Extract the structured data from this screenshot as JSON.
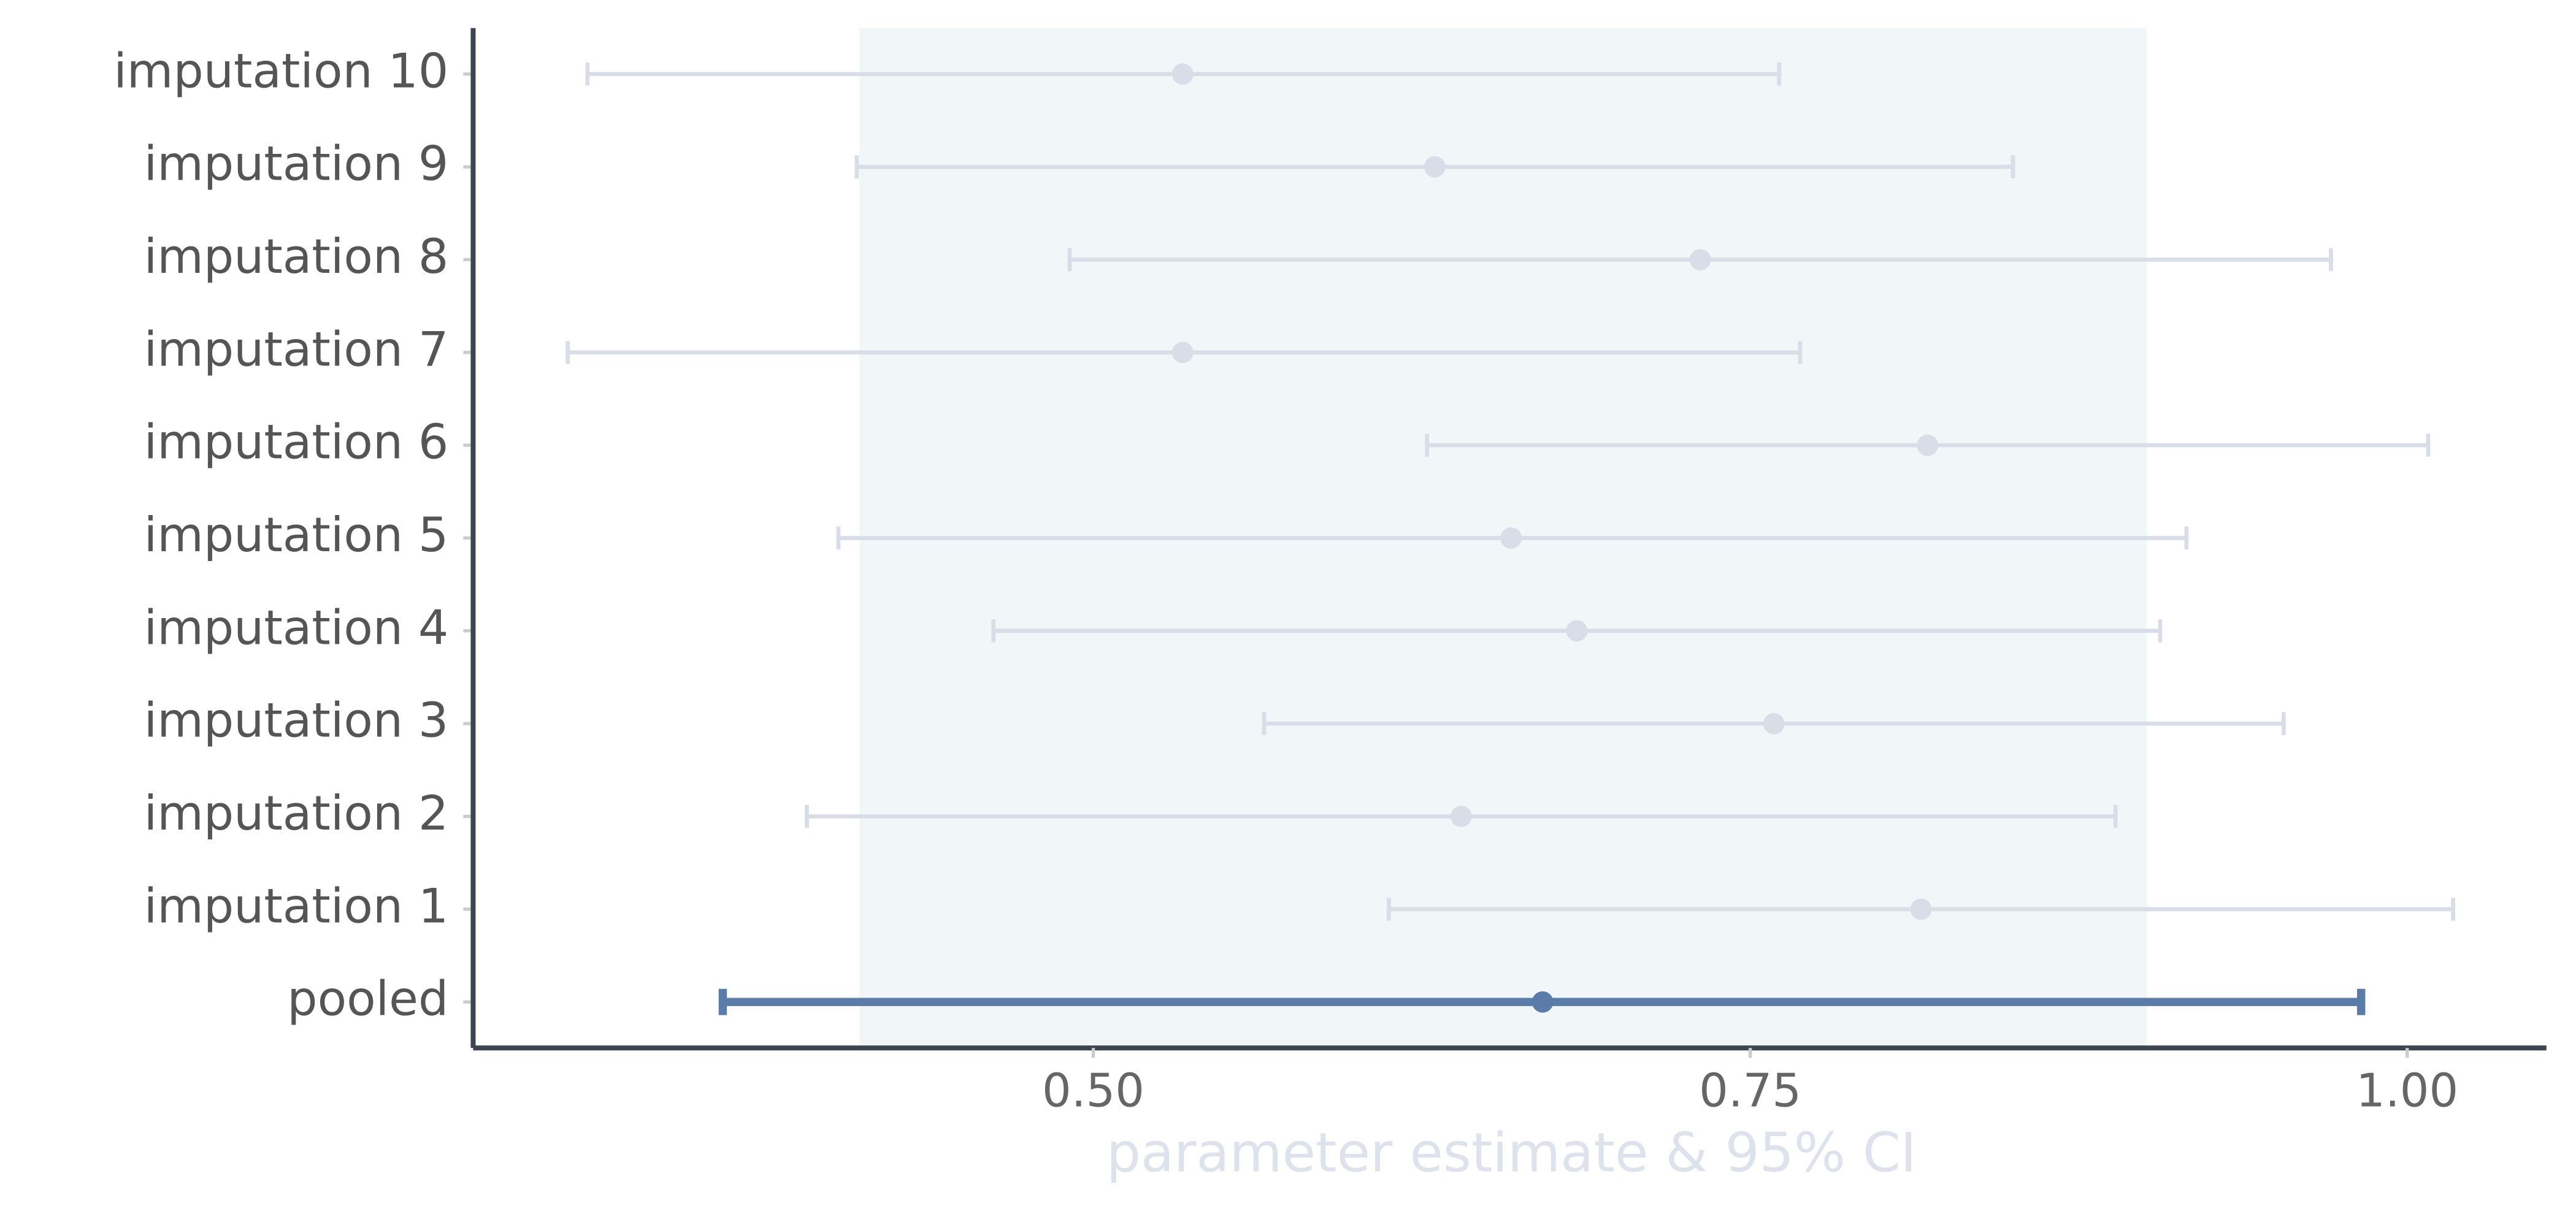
{
  "chart_data": {
    "type": "forest",
    "x_label": "parameter estimate & 95% CI",
    "categories": [
      "imputation 10",
      "imputation 9",
      "imputation 8",
      "imputation 7",
      "imputation 6",
      "imputation 5",
      "imputation 4",
      "imputation 3",
      "imputation 2",
      "imputation 1",
      "pooled"
    ],
    "values": [
      0.534,
      0.63,
      0.731,
      0.534,
      0.8175,
      0.659,
      0.684,
      0.759,
      0.64,
      0.815,
      0.671
    ],
    "lower": [
      0.3075,
      0.41,
      0.491,
      0.3,
      0.627,
      0.403,
      0.462,
      0.565,
      0.391,
      0.6125,
      0.359
    ],
    "upper": [
      0.761,
      0.85,
      0.971,
      0.769,
      1.008,
      0.916,
      0.906,
      0.953,
      0.889,
      1.0175,
      0.9825
    ],
    "colors": [
      "#d8dde8",
      "#d8dde8",
      "#d8dde8",
      "#d8dde8",
      "#d8dde8",
      "#d8dde8",
      "#d8dde8",
      "#d8dde8",
      "#d8dde8",
      "#d8dde8",
      "#5b7ba8"
    ],
    "band": [
      0.411,
      0.901
    ],
    "band_color": "#f1f6f8",
    "xlim": [
      0.264,
      1.053
    ],
    "xticks": [
      {
        "value": 0.5,
        "label": "0.50"
      },
      {
        "value": 0.75,
        "label": "0.75"
      },
      {
        "value": 1.0,
        "label": "1.00"
      }
    ]
  }
}
